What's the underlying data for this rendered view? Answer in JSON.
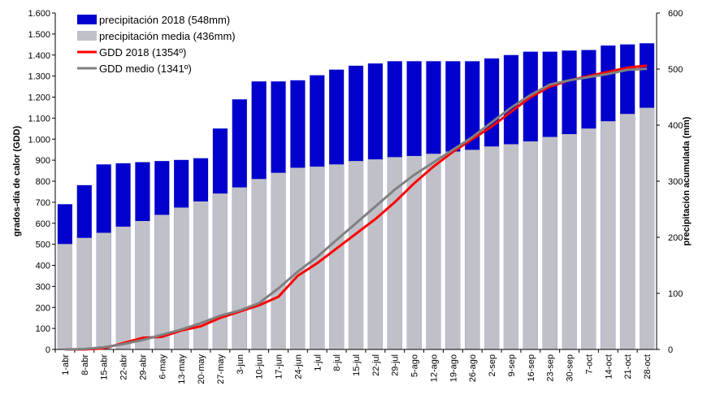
{
  "chart_data": {
    "type": "bar-line",
    "x_categories": [
      "1-abr",
      "8-abr",
      "15-abr",
      "22-abr",
      "29-abr",
      "6-may",
      "13-may",
      "20-may",
      "27-may",
      "3-jun",
      "10-jun",
      "17-jun",
      "24-jun",
      "1-jul",
      "8-jul",
      "15-jul",
      "22-jul",
      "29-jul",
      "5-ago",
      "12-ago",
      "19-ago",
      "26-ago",
      "2-sep",
      "9-sep",
      "16-sep",
      "23-sep",
      "30-sep",
      "7-oct",
      "14-oct",
      "21-oct",
      "28-oct"
    ],
    "y_label": "grados-día de calor (GDD)",
    "y2_label": "precipitación acumulada (mm)",
    "ylim": [
      0,
      1600
    ],
    "yticks": [
      0,
      100,
      200,
      300,
      400,
      500,
      600,
      700,
      800,
      900,
      {
        "value": 1000,
        "label": "1.000"
      },
      {
        "value": 1100,
        "label": "1.100"
      },
      {
        "value": 1200,
        "label": "1.200"
      },
      {
        "value": 1300,
        "label": "1.300"
      },
      {
        "value": 1400,
        "label": "1.400"
      },
      {
        "value": 1500,
        "label": "1.500"
      },
      {
        "value": 1600,
        "label": "1.600"
      }
    ],
    "y2lim": [
      0,
      600
    ],
    "y2ticks": [
      0,
      100,
      200,
      300,
      400,
      500,
      600
    ],
    "legend": "top-left",
    "series": [
      {
        "name": "precipitación 2018 (548mm)",
        "kind": "bar",
        "axis": "y2",
        "color": "#0000cc",
        "values": [
          259,
          293,
          330,
          332,
          334,
          336,
          338,
          341,
          394,
          446,
          478,
          478,
          480,
          489,
          499,
          506,
          510,
          514,
          514,
          514,
          514,
          514,
          519,
          525,
          531,
          531,
          533,
          534,
          542,
          544,
          546
        ]
      },
      {
        "name": "precipitación media (436mm)",
        "kind": "bar",
        "axis": "y2",
        "color": "#c0c0c8",
        "values": [
          188,
          199,
          208,
          219,
          229,
          240,
          253,
          264,
          278,
          289,
          304,
          315,
          324,
          326,
          330,
          336,
          339,
          343,
          345,
          349,
          353,
          356,
          362,
          366,
          371,
          379,
          384,
          394,
          407,
          420,
          431
        ]
      },
      {
        "name": "GDD 2018 (1354º)",
        "kind": "line",
        "color": "#ff0000",
        "values": [
          0,
          0,
          5,
          30,
          55,
          60,
          90,
          110,
          150,
          180,
          210,
          250,
          350,
          410,
          480,
          550,
          620,
          700,
          790,
          870,
          940,
          1000,
          1060,
          1130,
          1200,
          1250,
          1280,
          1300,
          1320,
          1340,
          1350
        ]
      },
      {
        "name": "GDD medio (1341º)",
        "kind": "line",
        "color": "#808080",
        "values": [
          0,
          2,
          10,
          25,
          45,
          70,
          95,
          125,
          160,
          185,
          220,
          290,
          370,
          440,
          520,
          600,
          680,
          760,
          830,
          890,
          950,
          1010,
          1080,
          1150,
          1210,
          1260,
          1280,
          1295,
          1310,
          1330,
          1335
        ]
      }
    ]
  }
}
